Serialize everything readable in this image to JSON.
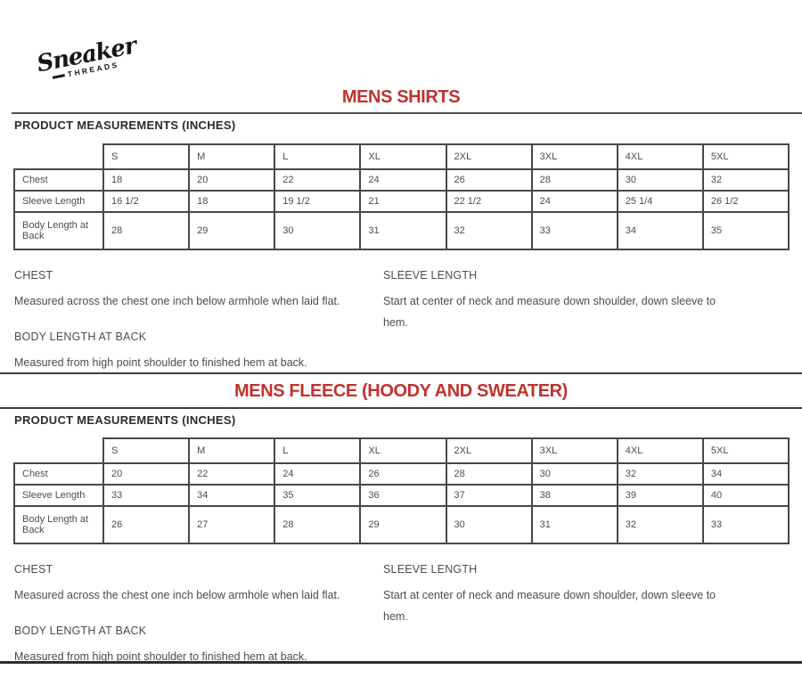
{
  "page": {
    "logo": {
      "brand_script": "Sneaker",
      "brand_sub": "THREADS"
    },
    "accent_color": "#bf332e",
    "sections": [
      {
        "title": "MENS SHIRTS",
        "heading": "PRODUCT MEASUREMENTS (INCHES)",
        "table": {
          "size_columns": [
            "S",
            "M",
            "L",
            "XL",
            "2XL",
            "3XL",
            "4XL",
            "5XL"
          ],
          "rows": [
            {
              "label": "Chest",
              "values": [
                "18",
                "20",
                "22",
                "24",
                "26",
                "28",
                "30",
                "32"
              ]
            },
            {
              "label": "Sleeve Length",
              "values": [
                "16 1/2",
                "18",
                "19 1/2",
                "21",
                "22 1/2",
                "24",
                "25 1/4",
                "26 1/2"
              ]
            },
            {
              "label": "Body Length at Back",
              "values": [
                "28",
                "29",
                "30",
                "31",
                "32",
                "33",
                "34",
                "35"
              ]
            }
          ]
        },
        "notes_left": [
          {
            "term": "CHEST",
            "definition": "Measured across the chest one inch below armhole when laid flat."
          },
          {
            "term": "BODY LENGTH AT BACK",
            "definition": "Measured from high point shoulder to finished hem at back."
          }
        ],
        "notes_right": [
          {
            "term": "SLEEVE LENGTH",
            "definition": "Start at center of neck and measure down shoulder, down sleeve to hem."
          }
        ]
      },
      {
        "title": "MENS FLEECE (HOODY AND SWEATER)",
        "heading": "PRODUCT MEASUREMENTS (INCHES)",
        "table": {
          "size_columns": [
            "S",
            "M",
            "L",
            "XL",
            "2XL",
            "3XL",
            "4XL",
            "5XL"
          ],
          "rows": [
            {
              "label": "Chest",
              "values": [
                "20",
                "22",
                "24",
                "26",
                "28",
                "30",
                "32",
                "34"
              ]
            },
            {
              "label": "Sleeve Length",
              "values": [
                "33",
                "34",
                "35",
                "36",
                "37",
                "38",
                "39",
                "40"
              ]
            },
            {
              "label": "Body Length at Back",
              "values": [
                "26",
                "27",
                "28",
                "29",
                "30",
                "31",
                "32",
                "33"
              ]
            }
          ]
        },
        "notes_left": [
          {
            "term": "CHEST",
            "definition": "Measured across the chest one inch below armhole when laid flat."
          },
          {
            "term": "BODY LENGTH AT BACK",
            "definition": "Measured from high point shoulder to finished hem at back."
          }
        ],
        "notes_right": [
          {
            "term": "SLEEVE LENGTH",
            "definition": "Start at center of neck and measure down shoulder, down sleeve to hem."
          }
        ]
      }
    ]
  }
}
